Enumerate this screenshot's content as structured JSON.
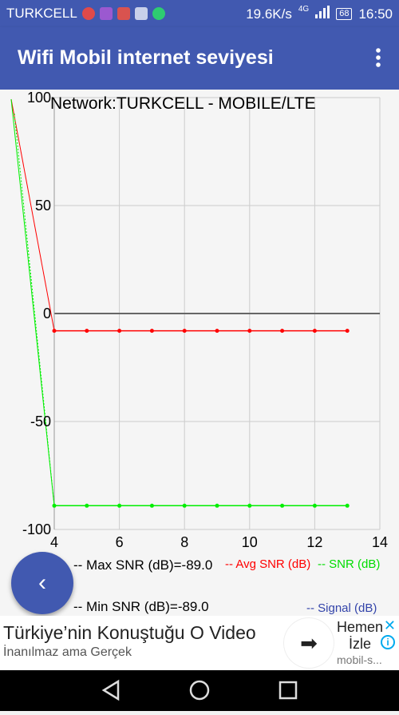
{
  "status_bar": {
    "carrier": "TURKCELL",
    "speed": "19.6K/s",
    "network": "4G",
    "battery": "68",
    "time": "16:50"
  },
  "app_bar": {
    "title": "Wifi Mobil internet seviyesi",
    "menu_icon": "more-vert-icon"
  },
  "chart_data": {
    "type": "line",
    "title": "Network:TURKCELL - MOBILE/LTE",
    "xlim": [
      4,
      14
    ],
    "ylim": [
      -100,
      100
    ],
    "x_ticks": [
      "4",
      "6",
      "8",
      "10",
      "12",
      "14"
    ],
    "y_ticks": [
      "100",
      "50",
      "0",
      "-50",
      "-100"
    ],
    "grid": true,
    "series": [
      {
        "name": "Avg SNR (dB)",
        "color": "#ff0000",
        "points": [
          [
            4,
            -8
          ],
          [
            5,
            -8
          ],
          [
            6,
            -8
          ],
          [
            7,
            -8
          ],
          [
            8,
            -8
          ],
          [
            9,
            -8
          ],
          [
            10,
            -8
          ],
          [
            11,
            -8
          ],
          [
            12,
            -8
          ],
          [
            13,
            -8
          ]
        ]
      },
      {
        "name": "SNR (dB)",
        "color": "#00ee00",
        "points": [
          [
            4,
            -89
          ],
          [
            5,
            -89
          ],
          [
            6,
            -89
          ],
          [
            7,
            -89
          ],
          [
            8,
            -89
          ],
          [
            9,
            -89
          ],
          [
            10,
            -89
          ],
          [
            11,
            -89
          ],
          [
            12,
            -89
          ],
          [
            13,
            -89
          ]
        ]
      }
    ],
    "legend": {
      "max_snr": "-- Max SNR (dB)=-89.0",
      "min_snr": "-- Min SNR (dB)=-89.0",
      "avg_snr": "-- Avg SNR (dB)",
      "snr": "-- SNR (dB)",
      "signal": "-- Signal (dB)"
    }
  },
  "fab": {
    "icon": "chevron-left-icon",
    "label": "‹"
  },
  "ad": {
    "headline": "Türkiye’nin Konuştuğu O Video",
    "subtext": "İnanılmaz ama Gerçek",
    "cta_line1": "Hemen",
    "cta_line2": "İzle",
    "domain": "mobil-s...",
    "arrow": "➡",
    "close": "✕",
    "info": "i"
  },
  "nav_bar": {
    "icons": [
      "back-icon",
      "home-icon",
      "recents-icon"
    ]
  },
  "colors": {
    "accent": "#4159b0",
    "avg": "#ff0000",
    "snr": "#00ee00",
    "signal": "#3344aa"
  }
}
